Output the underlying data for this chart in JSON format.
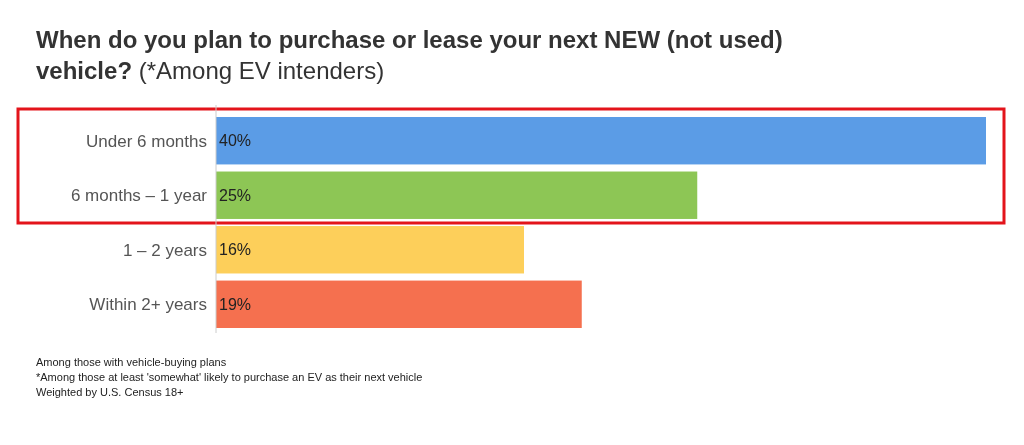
{
  "chart_data": {
    "type": "bar",
    "orientation": "horizontal",
    "title": "When do you plan to purchase or lease your next NEW (not used) vehicle?",
    "subtitle": "(*Among EV intenders)",
    "categories": [
      "Under 6 months",
      "6 months – 1 year",
      "1 – 2 years",
      "Within 2+ years"
    ],
    "values": [
      40,
      25,
      16,
      19
    ],
    "colors": [
      "#5b9ce6",
      "#8dc655",
      "#fdcf5a",
      "#f5704f"
    ],
    "value_labels": [
      "40%",
      "25%",
      "16%",
      "19%"
    ],
    "xlim": [
      0,
      40
    ],
    "tick_labels": "y",
    "annotations": [
      "Among those with vehicle-buying plans",
      "*Among those at least 'somewhat' likely to purchase an EV as their next vehicle",
      "Weighted by U.S. Census 18+"
    ]
  }
}
